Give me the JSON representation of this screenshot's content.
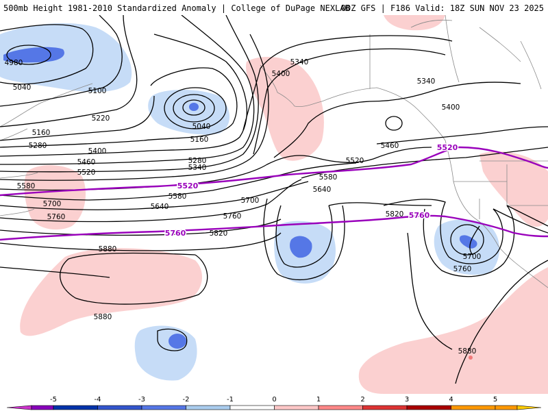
{
  "header": {
    "title_left": "500mb Height 1981-2010 Standardized Anomaly | College of DuPage NEXLAB",
    "title_right": "00Z GFS | F186 Valid: 18Z SUN NOV 23 2025"
  },
  "contour_labels": [
    {
      "id": "c1",
      "text": "4980"
    },
    {
      "id": "c2",
      "text": "5040"
    },
    {
      "id": "c3",
      "text": "5100"
    },
    {
      "id": "c4",
      "text": "5160"
    },
    {
      "id": "c5",
      "text": "5280"
    },
    {
      "id": "c6",
      "text": "5220"
    },
    {
      "id": "c7",
      "text": "5040"
    },
    {
      "id": "c8",
      "text": "5160"
    },
    {
      "id": "c9",
      "text": "5400"
    },
    {
      "id": "c10",
      "text": "5460"
    },
    {
      "id": "c11",
      "text": "5520"
    },
    {
      "id": "c12",
      "text": "5580"
    },
    {
      "id": "c13",
      "text": "5280"
    },
    {
      "id": "c14",
      "text": "5340"
    },
    {
      "id": "c15",
      "text": "5700"
    },
    {
      "id": "c16",
      "text": "5760"
    },
    {
      "id": "c17",
      "text": "5640"
    },
    {
      "id": "c18",
      "text": "5580"
    },
    {
      "id": "c19",
      "text": "5700"
    },
    {
      "id": "c20",
      "text": "5760"
    },
    {
      "id": "c21",
      "text": "5820"
    },
    {
      "id": "c22",
      "text": "5880"
    },
    {
      "id": "c23",
      "text": "5880"
    },
    {
      "id": "c24",
      "text": "5400"
    },
    {
      "id": "c25",
      "text": "5340"
    },
    {
      "id": "c26",
      "text": "5340"
    },
    {
      "id": "c27",
      "text": "5400"
    },
    {
      "id": "c28",
      "text": "5460"
    },
    {
      "id": "c29",
      "text": "5520"
    },
    {
      "id": "c30",
      "text": "5580"
    },
    {
      "id": "c31",
      "text": "5640"
    },
    {
      "id": "c32",
      "text": "5820"
    },
    {
      "id": "c33",
      "text": "5700"
    },
    {
      "id": "c34",
      "text": "5760"
    },
    {
      "id": "c35",
      "text": "5880"
    }
  ],
  "purple_labels": [
    {
      "id": "p1",
      "text": "5520"
    },
    {
      "id": "p2",
      "text": "5760"
    },
    {
      "id": "p3",
      "text": "5520"
    },
    {
      "id": "p4",
      "text": "5760"
    }
  ],
  "colorbar": {
    "ticks": [
      "-5",
      "-4",
      "-3",
      "-2",
      "-1",
      "0",
      "1",
      "2",
      "3",
      "4",
      "5"
    ],
    "colors": [
      "#cc33cc",
      "#8800bb",
      "#0033aa",
      "#3355cc",
      "#5577e6",
      "#aaccee",
      "#ffffff",
      "#ffc8c8",
      "#ff8888",
      "#dd3333",
      "#aa0000",
      "#ff9900",
      "#ffcc00"
    ]
  },
  "colors": {
    "neg_light": "#c6dcf7",
    "neg_medium": "#5577e6",
    "pos_light": "#fbd0d0",
    "pos_medium": "#f07a7a",
    "contour": "#000000",
    "highlight": "#9900bb",
    "coast": "#8a8a8a"
  }
}
